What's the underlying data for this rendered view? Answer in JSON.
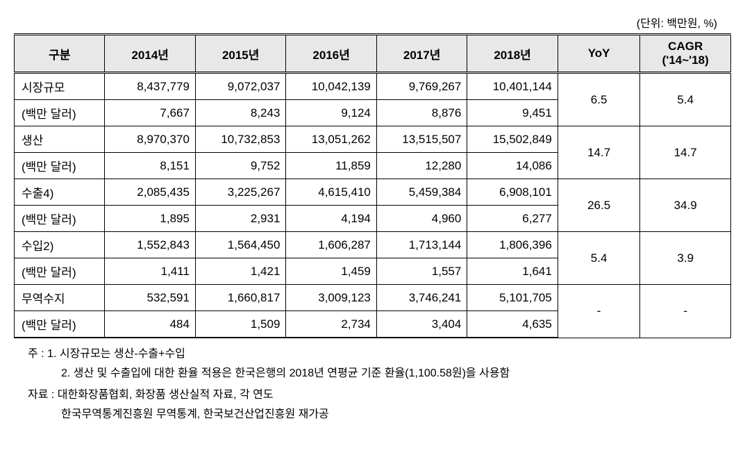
{
  "unit_label": "(단위: 백만원, %)",
  "headers": {
    "gubun": "구분",
    "y2014": "2014년",
    "y2015": "2015년",
    "y2016": "2016년",
    "y2017": "2017년",
    "y2018": "2018년",
    "yoy": "YoY",
    "cagr_line1": "CAGR",
    "cagr_line2": "('14~'18)"
  },
  "rows": [
    {
      "label": "시장규모",
      "values": [
        "8,437,779",
        "9,072,037",
        "10,042,139",
        "9,769,267",
        "10,401,144"
      ],
      "yoy": "6.5",
      "cagr": "5.4"
    },
    {
      "label": "(백만 달러)",
      "values": [
        "7,667",
        "8,243",
        "9,124",
        "8,876",
        "9,451"
      ]
    },
    {
      "label": "생산",
      "values": [
        "8,970,370",
        "10,732,853",
        "13,051,262",
        "13,515,507",
        "15,502,849"
      ],
      "yoy": "14.7",
      "cagr": "14.7"
    },
    {
      "label": "(백만 달러)",
      "values": [
        "8,151",
        "9,752",
        "11,859",
        "12,280",
        "14,086"
      ]
    },
    {
      "label": "수출4)",
      "values": [
        "2,085,435",
        "3,225,267",
        "4,615,410",
        "5,459,384",
        "6,908,101"
      ],
      "yoy": "26.5",
      "cagr": "34.9"
    },
    {
      "label": "(백만 달러)",
      "values": [
        "1,895",
        "2,931",
        "4,194",
        "4,960",
        "6,277"
      ]
    },
    {
      "label": "수입2)",
      "values": [
        "1,552,843",
        "1,564,450",
        "1,606,287",
        "1,713,144",
        "1,806,396"
      ],
      "yoy": "5.4",
      "cagr": "3.9"
    },
    {
      "label": "(백만 달러)",
      "values": [
        "1,411",
        "1,421",
        "1,459",
        "1,557",
        "1,641"
      ]
    },
    {
      "label": "무역수지",
      "values": [
        "532,591",
        "1,660,817",
        "3,009,123",
        "3,746,241",
        "5,101,705"
      ],
      "yoy": "-",
      "cagr": "-"
    },
    {
      "label": "(백만 달러)",
      "values": [
        "484",
        "1,509",
        "2,734",
        "3,404",
        "4,635"
      ]
    }
  ],
  "footnotes": {
    "note1": "주 : 1. 시장규모는 생산-수출+수입",
    "note2": "2. 생산 및 수출입에 대한 환율 적용은 한국은행의 2018년 연평균 기준 환율(1,100.58원)을 사용함",
    "source1": "자료 : 대한화장품협회, 화장품 생산실적 자료, 각 연도",
    "source2": "한국무역통계진흥원 무역통계, 한국보건산업진흥원 재가공"
  }
}
